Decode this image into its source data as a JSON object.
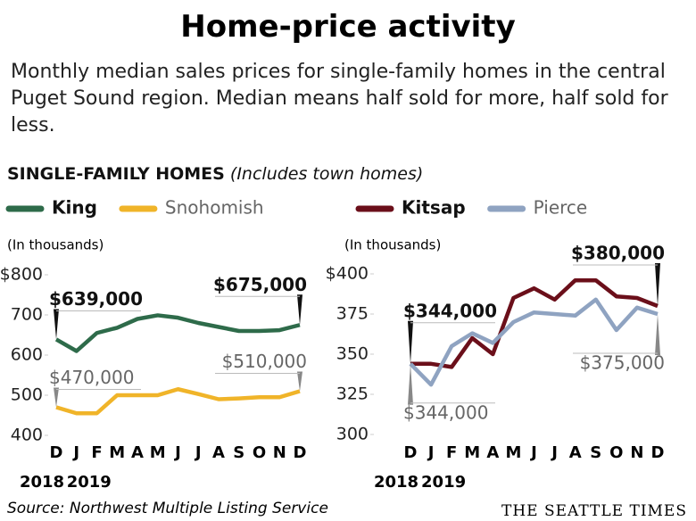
{
  "title": "Home-price activity",
  "subtitle": "Monthly median sales prices for single-family homes in the central Puget Sound region. Median means half sold for more, half sold for less.",
  "section_title": "SINGLE-FAMILY HOMES",
  "section_note": "(Includes town homes)",
  "source": "Source: Northwest Multiple Listing Service",
  "credit": "THE SEATTLE TIMES",
  "chart_data": [
    {
      "type": "line",
      "ylabel": "(In thousands)",
      "categories": [
        "D",
        "J",
        "F",
        "M",
        "A",
        "M",
        "J",
        "J",
        "A",
        "S",
        "O",
        "N",
        "D"
      ],
      "year_labels": [
        "2018",
        "2019"
      ],
      "ylim": [
        400,
        800
      ],
      "yticks": [
        {
          "value": 800,
          "label": "$800"
        },
        700,
        600,
        500,
        400
      ],
      "series": [
        {
          "name": "King",
          "color": "#2e6b4a",
          "values": [
            639,
            610,
            655,
            668,
            690,
            699,
            693,
            680,
            670,
            660,
            660,
            662,
            675
          ],
          "value_labels": [
            "$639,000",
            null,
            null,
            null,
            null,
            null,
            null,
            null,
            null,
            null,
            null,
            null,
            "$675,000"
          ]
        },
        {
          "name": "Snohomish",
          "color": "#f0b429",
          "values": [
            470,
            455,
            455,
            500,
            500,
            500,
            515,
            503,
            490,
            492,
            495,
            495,
            510
          ],
          "value_labels": [
            "$470,000",
            null,
            null,
            null,
            null,
            null,
            null,
            null,
            null,
            null,
            null,
            null,
            "$510,000"
          ]
        }
      ]
    },
    {
      "type": "line",
      "ylabel": "(In thousands)",
      "categories": [
        "D",
        "J",
        "F",
        "M",
        "A",
        "M",
        "J",
        "J",
        "A",
        "S",
        "O",
        "N",
        "D"
      ],
      "year_labels": [
        "2018",
        "2019"
      ],
      "ylim": [
        300,
        400
      ],
      "yticks": [
        {
          "value": 400,
          "label": "$400"
        },
        375,
        350,
        325,
        300
      ],
      "series": [
        {
          "name": "Kitsap",
          "color": "#6b0f1a",
          "values": [
            344,
            344,
            342,
            360,
            350,
            385,
            391,
            384,
            396,
            396,
            386,
            385,
            380
          ],
          "value_labels": [
            "$344,000",
            null,
            null,
            null,
            null,
            null,
            null,
            null,
            null,
            null,
            null,
            null,
            "$380,000"
          ]
        },
        {
          "name": "Pierce",
          "color": "#8fa3c1",
          "values": [
            344,
            331,
            355,
            363,
            357,
            370,
            376,
            375,
            374,
            384,
            365,
            379,
            375
          ],
          "value_labels": [
            "$344,000",
            null,
            null,
            null,
            null,
            null,
            null,
            null,
            null,
            null,
            null,
            null,
            "$375,000"
          ]
        }
      ]
    }
  ]
}
